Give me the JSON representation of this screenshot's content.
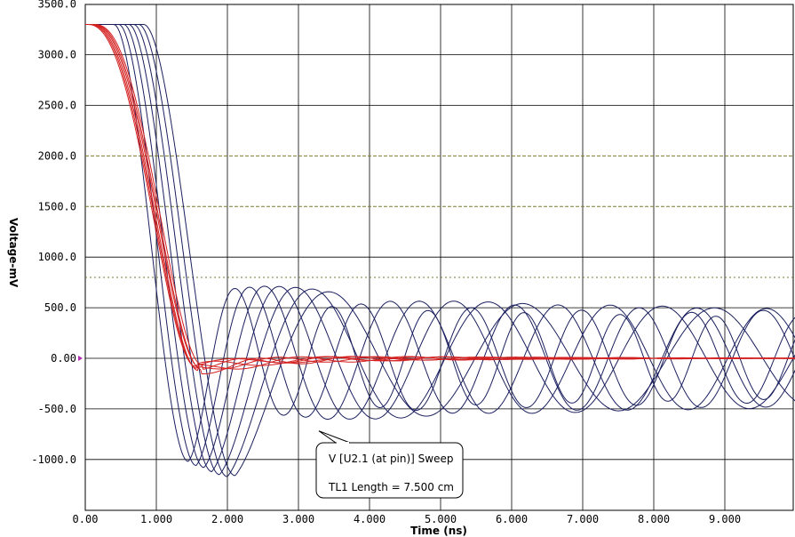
{
  "chart_data": {
    "type": "line",
    "xlabel": "Time  (ns)",
    "ylabel": "Voltage-mV",
    "xlim": [
      0,
      10
    ],
    "ylim": [
      -1550,
      3500
    ],
    "x_ticks": [
      0,
      1,
      2,
      3,
      4,
      5,
      6,
      7,
      8,
      9
    ],
    "x_tick_labels": [
      "0.00",
      "1.000",
      "2.000",
      "3.000",
      "4.000",
      "5.000",
      "6.000",
      "7.000",
      "8.000",
      "9.000"
    ],
    "y_ticks": [
      -1000,
      -500,
      0,
      500,
      1000,
      1500,
      2000,
      2500,
      3000,
      3500
    ],
    "y_tick_labels": [
      "-1000.0",
      "-500.0",
      "0.00",
      "500.0",
      "1000.0",
      "1500.0",
      "2000.0",
      "2500.0",
      "3000.0",
      "3500.0"
    ],
    "grid": true,
    "threshold_lines": [
      2000,
      1500,
      800
    ],
    "colors": {
      "unterminated": "#1a1f5e",
      "terminated": "#d42020",
      "grid": "#000000",
      "threshold": "#7a7a30",
      "zero_marker": "#b030b0"
    },
    "initial_level_mV": 3300,
    "series_unterminated": [
      {
        "delay_ns": 0.0,
        "overshoot_mV": -1020,
        "ring_amp_mV": 520,
        "ring_period_ns": 1.35,
        "decay_per_ns": 0.03
      },
      {
        "delay_ns": 0.07,
        "overshoot_mV": -1060,
        "ring_amp_mV": 560,
        "ring_period_ns": 1.55,
        "decay_per_ns": 0.03
      },
      {
        "delay_ns": 0.14,
        "overshoot_mV": -1080,
        "ring_amp_mV": 600,
        "ring_period_ns": 1.75,
        "decay_per_ns": 0.03
      },
      {
        "delay_ns": 0.21,
        "overshoot_mV": -1120,
        "ring_amp_mV": 610,
        "ring_period_ns": 1.95,
        "decay_per_ns": 0.03
      },
      {
        "delay_ns": 0.28,
        "overshoot_mV": -1150,
        "ring_amp_mV": 620,
        "ring_period_ns": 2.2,
        "decay_per_ns": 0.03
      },
      {
        "delay_ns": 0.35,
        "overshoot_mV": -1170,
        "ring_amp_mV": 620,
        "ring_period_ns": 2.45,
        "decay_per_ns": 0.03
      },
      {
        "delay_ns": 0.42,
        "overshoot_mV": -1160,
        "ring_amp_mV": 610,
        "ring_period_ns": 2.7,
        "decay_per_ns": 0.03
      }
    ],
    "series_terminated": [
      {
        "delay_ns": 0.0,
        "dip_mV": -80,
        "ring_amp_mV": 80
      },
      {
        "delay_ns": 0.02,
        "dip_mV": -100,
        "ring_amp_mV": 90
      },
      {
        "delay_ns": 0.04,
        "dip_mV": -120,
        "ring_amp_mV": 100
      },
      {
        "delay_ns": 0.06,
        "dip_mV": -90,
        "ring_amp_mV": 85
      },
      {
        "delay_ns": 0.08,
        "dip_mV": -110,
        "ring_amp_mV": 95
      },
      {
        "delay_ns": 0.1,
        "dip_mV": -70,
        "ring_amp_mV": 70
      }
    ],
    "annotations": [
      {
        "line1": "V [U2.1 (at pin)] Sweep",
        "line2": "TL1 Length = 7.500 cm",
        "pointer_x_ns": 3.3,
        "pointer_y_mV": -700
      }
    ]
  }
}
